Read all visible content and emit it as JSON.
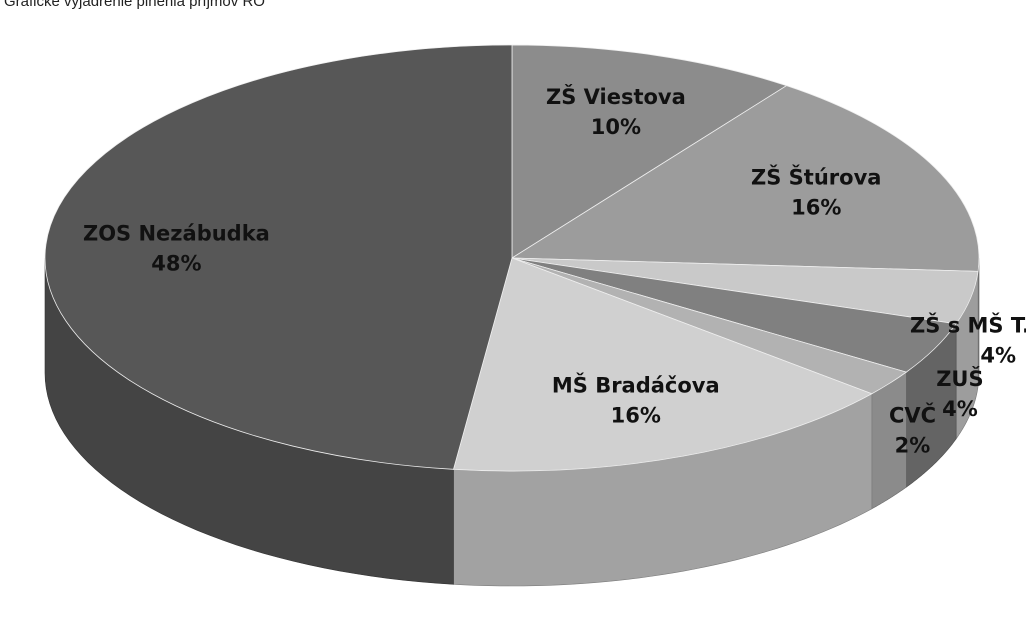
{
  "chart_data": {
    "type": "pie",
    "title": "Grafické vyjadrenie plnenia príjmov RO",
    "categories": [
      "ZŠ Viestova",
      "ZŠ Štúrova",
      "ZŠ s MŠ T.Lúka",
      "ZUŠ",
      "CVČ",
      "MŠ Bradáčova",
      "ZOS Nezábudka"
    ],
    "values": [
      10,
      16,
      4,
      4,
      2,
      16,
      48
    ],
    "value_labels": [
      "10%",
      "16%",
      "4%",
      "4%",
      "2%",
      "16%",
      "48%"
    ],
    "colors": [
      "#8c8c8c",
      "#9c9c9c",
      "#c9c9c9",
      "#808080",
      "#b2b2b2",
      "#d0d0d0",
      "#575757"
    ]
  }
}
